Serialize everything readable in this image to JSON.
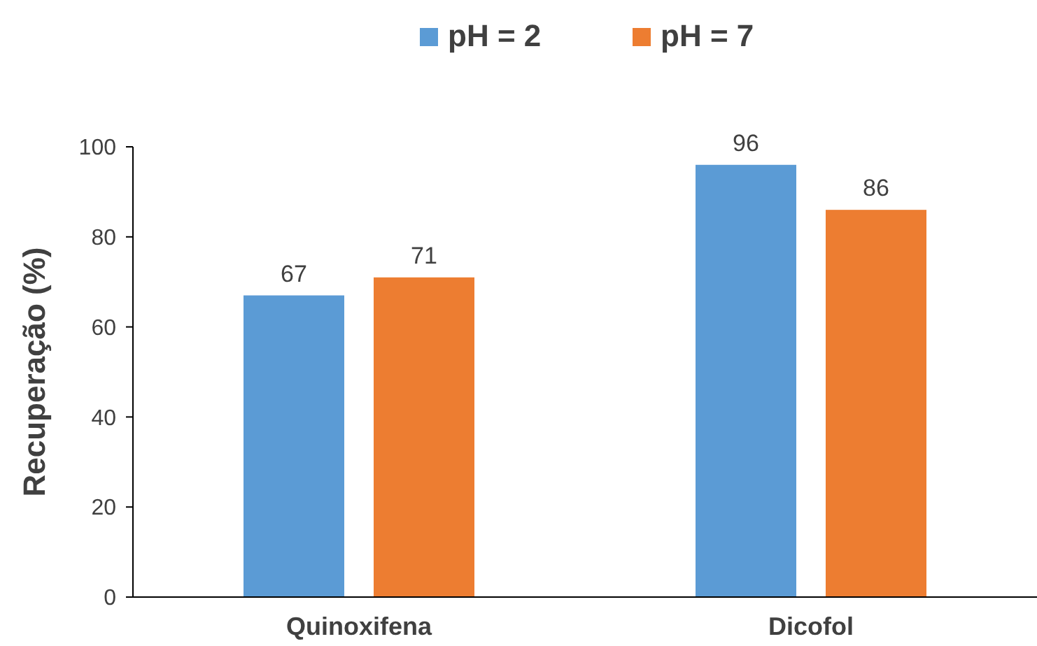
{
  "chart_data": {
    "type": "bar",
    "ylabel": "Recuperação (%)",
    "categories": [
      "Quinoxifena",
      "Dicofol"
    ],
    "series": [
      {
        "name": "pH = 2",
        "color": "#5b9bd5",
        "values": [
          67,
          96
        ]
      },
      {
        "name": "pH = 7",
        "color": "#ed7d31",
        "values": [
          71,
          86
        ]
      }
    ],
    "ylim": [
      0,
      100
    ],
    "yticks": [
      0,
      20,
      40,
      60,
      80,
      100
    ],
    "grid": false,
    "legend": "top",
    "data_labels": true
  }
}
